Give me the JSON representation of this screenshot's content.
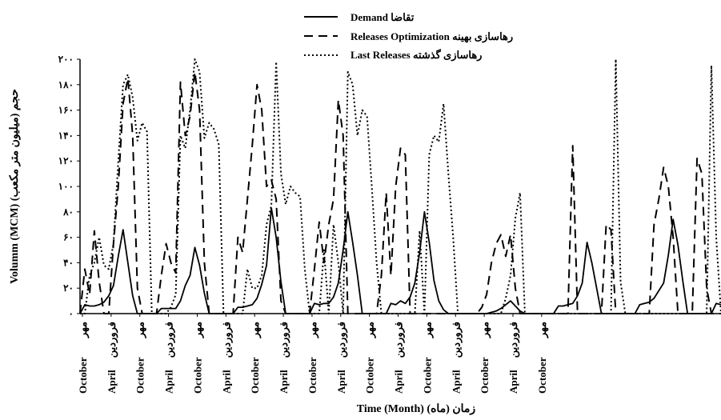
{
  "chart_data": {
    "type": "line",
    "xlabel": "Time (Month) (ماه) زمان",
    "ylabel": "Volumm (MCM)  (میلیون متر مکعب) حجم",
    "ylim": [
      0,
      200
    ],
    "yticks": [
      "۰",
      "۲۰",
      "۴۰",
      "۶۰",
      "۸۰",
      "۱۰۰",
      "۱۲۰",
      "۱۴۰",
      "۱۶۰",
      "۱۸۰",
      "۲۰۰"
    ],
    "ytick_values": [
      0,
      20,
      40,
      60,
      80,
      100,
      120,
      140,
      160,
      180,
      200
    ],
    "x_tick_pairs": [
      {
        "en": "October",
        "fa": "مهر"
      },
      {
        "en": "April",
        "fa": "فروردین"
      },
      {
        "en": "October",
        "fa": "مهر"
      },
      {
        "en": "April",
        "fa": "فروردین"
      },
      {
        "en": "October",
        "fa": "مهر"
      },
      {
        "en": "April",
        "fa": "فروردین"
      },
      {
        "en": "October",
        "fa": "مهر"
      },
      {
        "en": "April",
        "fa": "فروردین"
      },
      {
        "en": "October",
        "fa": "مهر"
      },
      {
        "en": "April",
        "fa": "فروردین"
      },
      {
        "en": "October",
        "fa": "مهر"
      },
      {
        "en": "April",
        "fa": "فروردین"
      },
      {
        "en": "October",
        "fa": "مهر"
      },
      {
        "en": "April",
        "fa": "فروردین"
      },
      {
        "en": "October",
        "fa": "مهر"
      },
      {
        "en": "April",
        "fa": "فروردین"
      },
      {
        "en": "October",
        "fa": "مهر"
      }
    ],
    "legend_position": "top-center",
    "series": [
      {
        "name": "Demand",
        "name_fa": "تقاضا",
        "style": "solid",
        "values": [
          0,
          7,
          6,
          6,
          7,
          9,
          14,
          22,
          45,
          66,
          40,
          14,
          0,
          0,
          0,
          0,
          0,
          4,
          4,
          4,
          4,
          10,
          22,
          30,
          52,
          38,
          16,
          0,
          0,
          0,
          0,
          0,
          0,
          5,
          5,
          6,
          7,
          12,
          23,
          38,
          83,
          60,
          25,
          0,
          0,
          0,
          0,
          0,
          0,
          8,
          7,
          8,
          8,
          13,
          24,
          50,
          80,
          56,
          30,
          0,
          0,
          0,
          0,
          0,
          0,
          8,
          7,
          10,
          8,
          13,
          24,
          48,
          80,
          56,
          26,
          10,
          3,
          0,
          0,
          0,
          0,
          0,
          0,
          0,
          0,
          0,
          1,
          2,
          4,
          7,
          10,
          6,
          2,
          0,
          0,
          0,
          0,
          0,
          0,
          0,
          6,
          6,
          7,
          8,
          14,
          24,
          56,
          40,
          20,
          0,
          0,
          0,
          0,
          0,
          0,
          0,
          0,
          7,
          8,
          9,
          12,
          18,
          24,
          46,
          74,
          54,
          26,
          0,
          0,
          0,
          0,
          0,
          0,
          8,
          7
        ]
      },
      {
        "name": "Releases Optimization",
        "name_fa": "رهاسازی بهینه",
        "style": "dashed",
        "values": [
          0,
          35,
          15,
          65,
          25,
          0,
          0,
          55,
          100,
          165,
          185,
          140,
          20,
          0,
          0,
          0,
          0,
          30,
          55,
          40,
          32,
          182,
          140,
          155,
          190,
          160,
          40,
          0,
          0,
          0,
          0,
          0,
          0,
          60,
          48,
          90,
          132,
          180,
          160,
          100,
          105,
          90,
          10,
          0,
          0,
          0,
          0,
          0,
          0,
          35,
          72,
          40,
          70,
          90,
          168,
          140,
          0,
          0,
          0,
          0,
          0,
          0,
          0,
          30,
          95,
          30,
          100,
          130,
          125,
          0,
          0,
          0,
          0,
          0,
          0,
          0,
          0,
          0,
          0,
          0,
          0,
          0,
          0,
          0,
          5,
          15,
          40,
          55,
          62,
          45,
          62,
          20,
          0,
          0,
          0,
          0,
          0,
          0,
          0,
          0,
          0,
          0,
          0,
          132,
          0,
          0,
          0,
          0,
          0,
          0,
          70,
          66,
          0,
          0,
          0,
          0,
          0,
          0,
          0,
          0,
          70,
          90,
          115,
          100,
          60,
          0,
          0,
          0,
          0,
          122,
          110,
          20,
          0,
          0,
          0,
          0,
          0,
          85,
          95
        ]
      },
      {
        "name": "Last Releases",
        "name_fa": "رهاسازی گذشته",
        "style": "dotted",
        "values": [
          0,
          0,
          30,
          40,
          60,
          38,
          35,
          55,
          120,
          180,
          188,
          170,
          136,
          150,
          143,
          0,
          0,
          0,
          0,
          5,
          15,
          140,
          130,
          160,
          200,
          190,
          138,
          150,
          145,
          133,
          0,
          0,
          0,
          0,
          0,
          35,
          20,
          20,
          30,
          70,
          85,
          198,
          110,
          86,
          100,
          95,
          92,
          35,
          0,
          0,
          0,
          50,
          0,
          70,
          40,
          0,
          190,
          180,
          140,
          160,
          155,
          100,
          40,
          0,
          0,
          0,
          0,
          0,
          0,
          0,
          0,
          65,
          0,
          125,
          140,
          135,
          165,
          110,
          60,
          0,
          0,
          0,
          0,
          0,
          0,
          0,
          0,
          0,
          0,
          12,
          30,
          75,
          95,
          0,
          0,
          0,
          0,
          0,
          0,
          0,
          0,
          0,
          0,
          0,
          0,
          0,
          0,
          0,
          0,
          0,
          0,
          0,
          200,
          25,
          0,
          0,
          0,
          0,
          0,
          0,
          0,
          0,
          0,
          0,
          0,
          0,
          0,
          0,
          0,
          0,
          0,
          0,
          195,
          60,
          0,
          0,
          0,
          0,
          0,
          0,
          25,
          0
        ]
      }
    ]
  }
}
